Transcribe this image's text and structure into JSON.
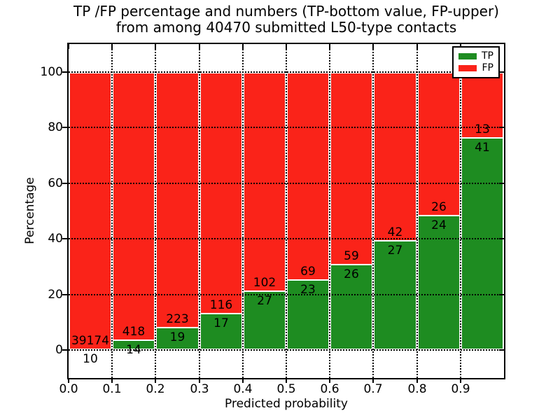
{
  "chart_data": {
    "type": "bar",
    "stacked": true,
    "normalized_to_percent": true,
    "title_line1": "TP /FP percentage and numbers (TP-bottom value, FP-upper)",
    "title_line2": "from among 40470 submitted L50-type contacts",
    "total_submitted": 40470,
    "xlabel": "Predicted probability",
    "ylabel": "Percentage",
    "xlim": [
      0.0,
      1.0
    ],
    "ylim": [
      -10,
      110
    ],
    "grid": "dotted",
    "legend_position": "upper right",
    "x_tick_labels": [
      "0.0",
      "0.1",
      "0.2",
      "0.3",
      "0.4",
      "0.5",
      "0.6",
      "0.7",
      "0.8",
      "0.9"
    ],
    "y_tick_values": [
      0,
      20,
      40,
      60,
      80,
      100
    ],
    "legend": [
      {
        "label": "TP",
        "color": "#1e8c21"
      },
      {
        "label": "FP",
        "color": "#fa2319"
      }
    ],
    "bins": [
      {
        "range": [
          0.0,
          0.1
        ],
        "tp": 10,
        "fp": 39174
      },
      {
        "range": [
          0.1,
          0.2
        ],
        "tp": 14,
        "fp": 418
      },
      {
        "range": [
          0.2,
          0.3
        ],
        "tp": 19,
        "fp": 223
      },
      {
        "range": [
          0.3,
          0.4
        ],
        "tp": 17,
        "fp": 116
      },
      {
        "range": [
          0.4,
          0.5
        ],
        "tp": 27,
        "fp": 102
      },
      {
        "range": [
          0.5,
          0.6
        ],
        "tp": 23,
        "fp": 69
      },
      {
        "range": [
          0.6,
          0.7
        ],
        "tp": 26,
        "fp": 59
      },
      {
        "range": [
          0.7,
          0.8
        ],
        "tp": 27,
        "fp": 42
      },
      {
        "range": [
          0.8,
          0.9
        ],
        "tp": 24,
        "fp": 26
      },
      {
        "range": [
          0.9,
          1.0
        ],
        "tp": 41,
        "fp": 13
      }
    ],
    "colors": {
      "tp": "#1e8c21",
      "fp": "#fa2319",
      "grid": "#000000",
      "axes_border": "#000000",
      "bar_edge": "#ffffff",
      "background": "#ffffff"
    }
  }
}
